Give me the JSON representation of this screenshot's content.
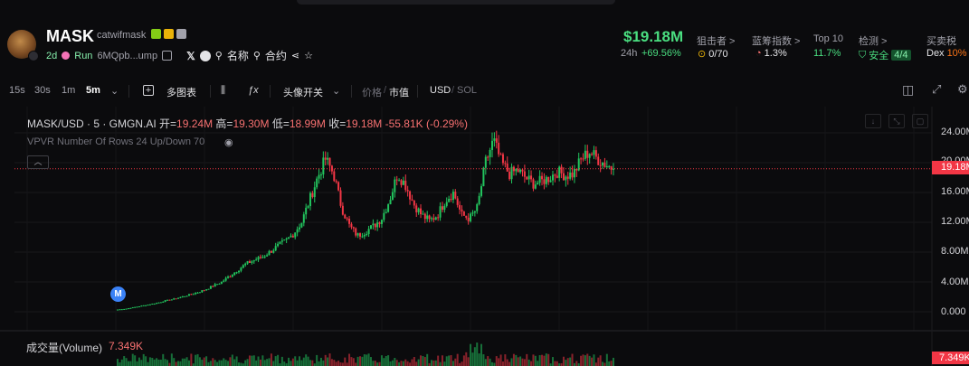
{
  "token": {
    "symbol": "MASK",
    "name": "catwifmask",
    "age": "2d",
    "run_label": "Run",
    "address": "6MQpb...ump",
    "name_link": "名称",
    "contract_link": "合约"
  },
  "stats": {
    "price": "$19.18M",
    "change_label": "24h",
    "change_value": "+69.56%",
    "snipers_label": "狙击者 >",
    "snipers_value": "0/70",
    "bluechip_label": "蓝筹指数 >",
    "bluechip_value": "1.3%",
    "top10_label": "Top 10",
    "top10_value": "11.7%",
    "check_label": "检测 >",
    "check_value": "安全",
    "check_badge": "4/4",
    "tax_label": "买卖税",
    "tax_prefix": "Dex",
    "tax_value": "10%"
  },
  "toolbar": {
    "intervals": [
      "15s",
      "30s",
      "1m",
      "5m"
    ],
    "active_interval": "5m",
    "multi_chart": "多图表",
    "avatar_toggle": "头像开关",
    "price_label": "价格",
    "mcap_label": "市值",
    "usd": "USD",
    "sol": "SOL"
  },
  "chart": {
    "ohlc_title": "MASK/USD · 5 · GMGN.AI",
    "open_label": "开=",
    "open_value": "19.24M",
    "high_label": "高=",
    "high_value": "19.30M",
    "low_label": "低=",
    "low_value": "18.99M",
    "close_label": "收=",
    "close_value": "19.18M",
    "change_value": "-55.81K (-0.29%)",
    "vpvr": "VPVR Number Of Rows 24 Up/Down 70",
    "current_price_tag": "19.18M",
    "marker_letter": "M",
    "volume_label": "成交量(Volume)",
    "volume_value": "7.349K",
    "volume_tag": "7.349K",
    "y_axis_labels": [
      "24.00M",
      "20.00M",
      "16.00M",
      "12.00M",
      "8.00M",
      "4.00M",
      "0.000"
    ]
  },
  "chart_data": {
    "type": "candlestick",
    "ylabel": "Market cap (USD)",
    "ylim": [
      0,
      24000000
    ],
    "current": 19180000,
    "approx_close_series_millions": [
      0.3,
      0.4,
      0.6,
      0.8,
      1.0,
      1.2,
      1.5,
      1.7,
      2.0,
      2.3,
      2.6,
      3.0,
      3.5,
      4.0,
      4.8,
      5.6,
      6.4,
      6.9,
      7.3,
      8.0,
      8.8,
      9.5,
      10.5,
      12.0,
      15.0,
      18.0,
      20.5,
      18.5,
      14.0,
      11.5,
      10.2,
      10.8,
      11.5,
      12.5,
      15.0,
      18.5,
      17.0,
      14.5,
      13.0,
      12.2,
      13.0,
      15.0,
      16.0,
      13.0,
      12.5,
      14.0,
      20.0,
      23.0,
      20.0,
      18.5,
      19.0,
      18.0,
      17.2,
      17.5,
      18.0,
      18.8,
      18.3,
      18.5,
      20.5,
      21.5,
      20.5,
      19.8,
      19.18
    ],
    "volume_last": 7349
  },
  "colors": {
    "up": "#22c55e",
    "down": "#f23645",
    "accent_green": "#4ade80",
    "price_tag": "#f23645"
  }
}
